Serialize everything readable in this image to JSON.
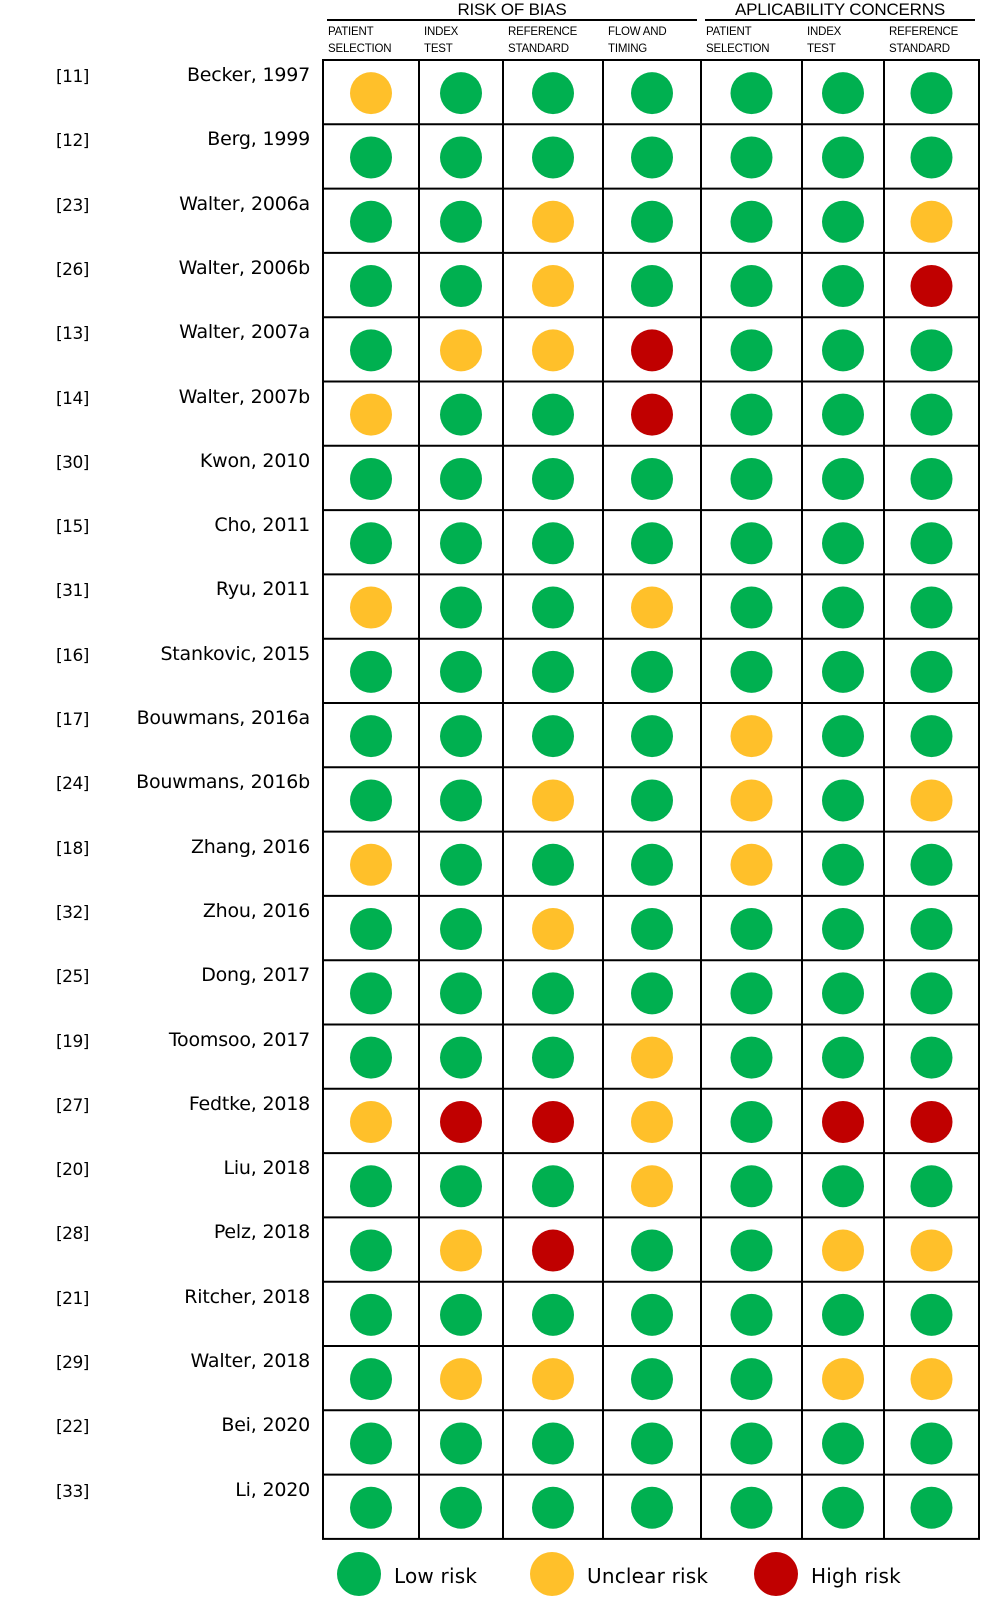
{
  "colors": {
    "low": "#00b050",
    "unclear": "#ffc02a",
    "high": "#c00000"
  },
  "groups": [
    {
      "title": "RISK OF BIAS",
      "columns": 4
    },
    {
      "title": "APLICABILITY CONCERNS",
      "columns": 3
    }
  ],
  "columns": [
    {
      "line1": "PATIENT",
      "line2": "SELECTION"
    },
    {
      "line1": "INDEX",
      "line2": "TEST"
    },
    {
      "line1": "REFERENCE",
      "line2": "STANDARD"
    },
    {
      "line1": "FLOW AND",
      "line2": "TIMING"
    },
    {
      "line1": "PATIENT",
      "line2": "SELECTION"
    },
    {
      "line1": "INDEX",
      "line2": "TEST"
    },
    {
      "line1": "REFERENCE",
      "line2": "STANDARD"
    }
  ],
  "rows": [
    {
      "ref": "[11]",
      "study": "Becker, 1997",
      "ratings": [
        "unclear",
        "low",
        "low",
        "low",
        "low",
        "low",
        "low"
      ]
    },
    {
      "ref": "[12]",
      "study": "Berg, 1999",
      "ratings": [
        "low",
        "low",
        "low",
        "low",
        "low",
        "low",
        "low"
      ]
    },
    {
      "ref": "[23]",
      "study": "Walter, 2006a",
      "ratings": [
        "low",
        "low",
        "unclear",
        "low",
        "low",
        "low",
        "unclear"
      ]
    },
    {
      "ref": "[26]",
      "study": "Walter, 2006b",
      "ratings": [
        "low",
        "low",
        "unclear",
        "low",
        "low",
        "low",
        "high"
      ]
    },
    {
      "ref": "[13]",
      "study": "Walter, 2007a",
      "ratings": [
        "low",
        "unclear",
        "unclear",
        "high",
        "low",
        "low",
        "low"
      ]
    },
    {
      "ref": "[14]",
      "study": "Walter, 2007b",
      "ratings": [
        "unclear",
        "low",
        "low",
        "high",
        "low",
        "low",
        "low"
      ]
    },
    {
      "ref": "[30]",
      "study": "Kwon, 2010",
      "ratings": [
        "low",
        "low",
        "low",
        "low",
        "low",
        "low",
        "low"
      ]
    },
    {
      "ref": "[15]",
      "study": "Cho, 2011",
      "ratings": [
        "low",
        "low",
        "low",
        "low",
        "low",
        "low",
        "low"
      ]
    },
    {
      "ref": "[31]",
      "study": "Ryu, 2011",
      "ratings": [
        "unclear",
        "low",
        "low",
        "unclear",
        "low",
        "low",
        "low"
      ]
    },
    {
      "ref": "[16]",
      "study": "Stankovic, 2015",
      "ratings": [
        "low",
        "low",
        "low",
        "low",
        "low",
        "low",
        "low"
      ]
    },
    {
      "ref": "[17]",
      "study": "Bouwmans, 2016a",
      "ratings": [
        "low",
        "low",
        "low",
        "low",
        "unclear",
        "low",
        "low"
      ]
    },
    {
      "ref": "[24]",
      "study": "Bouwmans, 2016b",
      "ratings": [
        "low",
        "low",
        "unclear",
        "low",
        "unclear",
        "low",
        "unclear"
      ]
    },
    {
      "ref": "[18]",
      "study": "Zhang, 2016",
      "ratings": [
        "unclear",
        "low",
        "low",
        "low",
        "unclear",
        "low",
        "low"
      ]
    },
    {
      "ref": "[32]",
      "study": "Zhou, 2016",
      "ratings": [
        "low",
        "low",
        "unclear",
        "low",
        "low",
        "low",
        "low"
      ]
    },
    {
      "ref": "[25]",
      "study": "Dong, 2017",
      "ratings": [
        "low",
        "low",
        "low",
        "low",
        "low",
        "low",
        "low"
      ]
    },
    {
      "ref": "[19]",
      "study": "Toomsoo, 2017",
      "ratings": [
        "low",
        "low",
        "low",
        "unclear",
        "low",
        "low",
        "low"
      ]
    },
    {
      "ref": "[27]",
      "study": "Fedtke, 2018",
      "ratings": [
        "unclear",
        "high",
        "high",
        "unclear",
        "low",
        "high",
        "high"
      ]
    },
    {
      "ref": "[20]",
      "study": "Liu, 2018",
      "ratings": [
        "low",
        "low",
        "low",
        "unclear",
        "low",
        "low",
        "low"
      ]
    },
    {
      "ref": "[28]",
      "study": "Pelz, 2018",
      "ratings": [
        "low",
        "unclear",
        "high",
        "low",
        "low",
        "unclear",
        "unclear"
      ]
    },
    {
      "ref": "[21]",
      "study": "Ritcher, 2018",
      "ratings": [
        "low",
        "low",
        "low",
        "low",
        "low",
        "low",
        "low"
      ]
    },
    {
      "ref": "[29]",
      "study": "Walter, 2018",
      "ratings": [
        "low",
        "unclear",
        "unclear",
        "low",
        "low",
        "unclear",
        "unclear"
      ]
    },
    {
      "ref": "[22]",
      "study": "Bei, 2020",
      "ratings": [
        "low",
        "low",
        "low",
        "low",
        "low",
        "low",
        "low"
      ]
    },
    {
      "ref": "[33]",
      "study": "Li, 2020",
      "ratings": [
        "low",
        "low",
        "low",
        "low",
        "low",
        "low",
        "low"
      ]
    }
  ],
  "legend": [
    {
      "key": "low",
      "label": "Low risk"
    },
    {
      "key": "unclear",
      "label": "Unclear risk"
    },
    {
      "key": "high",
      "label": "High risk"
    }
  ]
}
